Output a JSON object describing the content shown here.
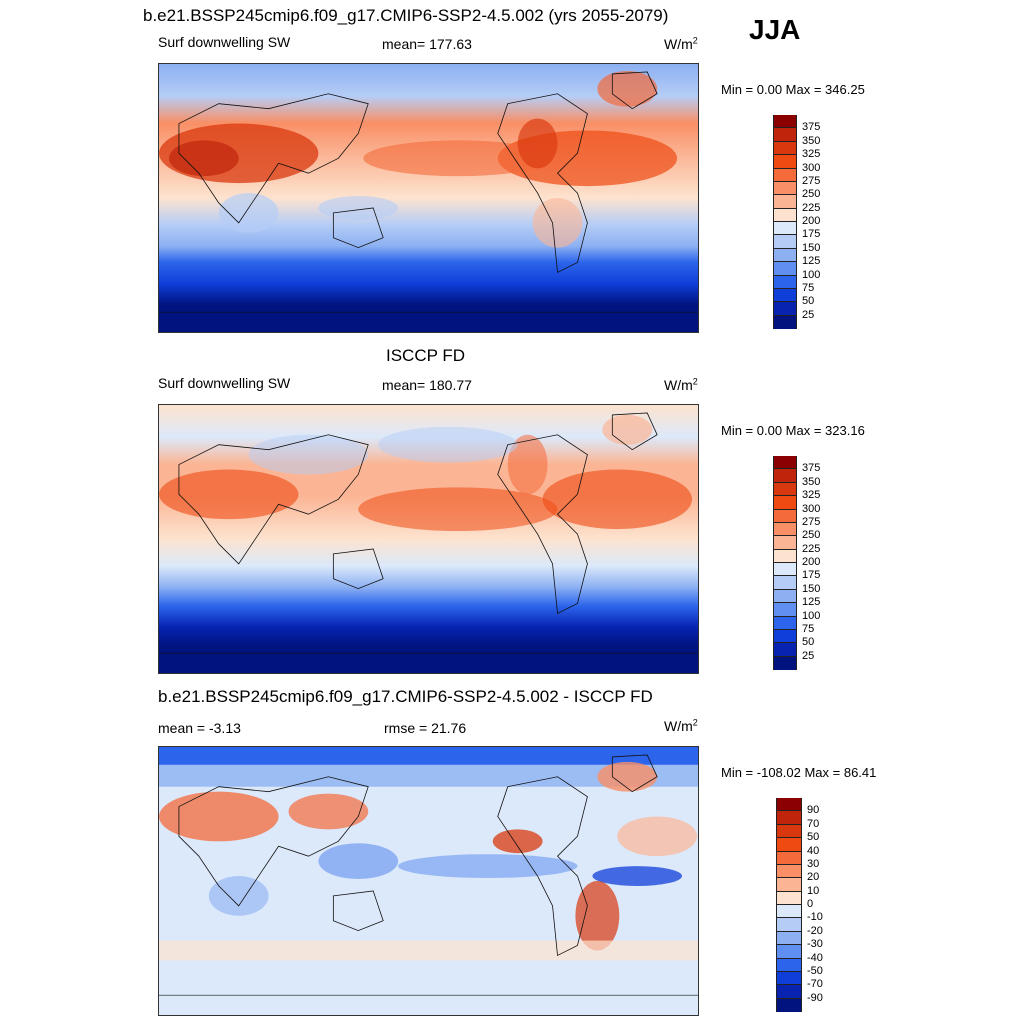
{
  "header": {
    "title": "b.e21.BSSP245cmip6.f09_g17.CMIP6-SSP2-4.5.002 (yrs 2055-2079)",
    "season": "JJA"
  },
  "panels": [
    {
      "id": "model",
      "title": "",
      "left_label": "Surf downwelling SW",
      "center_label": "mean= 177.63",
      "units": "W/m",
      "units_sup": "2",
      "minmax": "Min =   0.00 Max = 346.25",
      "scale": "abs"
    },
    {
      "id": "obs",
      "title": "ISCCP FD",
      "left_label": "Surf downwelling SW",
      "center_label": "mean= 180.77",
      "units": "W/m",
      "units_sup": "2",
      "minmax": "Min =   0.00 Max = 323.16",
      "scale": "abs"
    },
    {
      "id": "diff",
      "title": "b.e21.BSSP245cmip6.f09_g17.CMIP6-SSP2-4.5.002 - ISCCP FD",
      "left_label": "mean =  -3.13",
      "center_label": "rmse =  21.76",
      "units": "W/m",
      "units_sup": "2",
      "minmax": "Min = -108.02 Max =  86.41",
      "scale": "diff"
    }
  ],
  "colorbars": {
    "abs": {
      "labels": [
        "375",
        "350",
        "325",
        "300",
        "275",
        "250",
        "225",
        "200",
        "175",
        "150",
        "125",
        "100",
        "75",
        "50",
        "25"
      ],
      "colors": [
        "#8b0000",
        "#c0250c",
        "#d9380e",
        "#ee4a12",
        "#f46a3a",
        "#f98f66",
        "#fbb595",
        "#fde3cf",
        "#dce9fa",
        "#b5cdf6",
        "#8cb0f2",
        "#5f8ff0",
        "#2c65ec",
        "#0f3ed8",
        "#0723b0",
        "#00137f"
      ]
    },
    "diff": {
      "labels": [
        "90",
        "70",
        "50",
        "40",
        "30",
        "20",
        "10",
        "0",
        "-10",
        "-20",
        "-30",
        "-40",
        "-50",
        "-70",
        "-90"
      ],
      "colors": [
        "#8b0000",
        "#c0250c",
        "#d9380e",
        "#ee4a12",
        "#f46a3a",
        "#f98f66",
        "#fbb595",
        "#fde3cf",
        "#dce9fa",
        "#b5cdf6",
        "#8cb0f2",
        "#5f8ff0",
        "#2c65ec",
        "#0f3ed8",
        "#0723b0",
        "#00137f"
      ]
    }
  }
}
